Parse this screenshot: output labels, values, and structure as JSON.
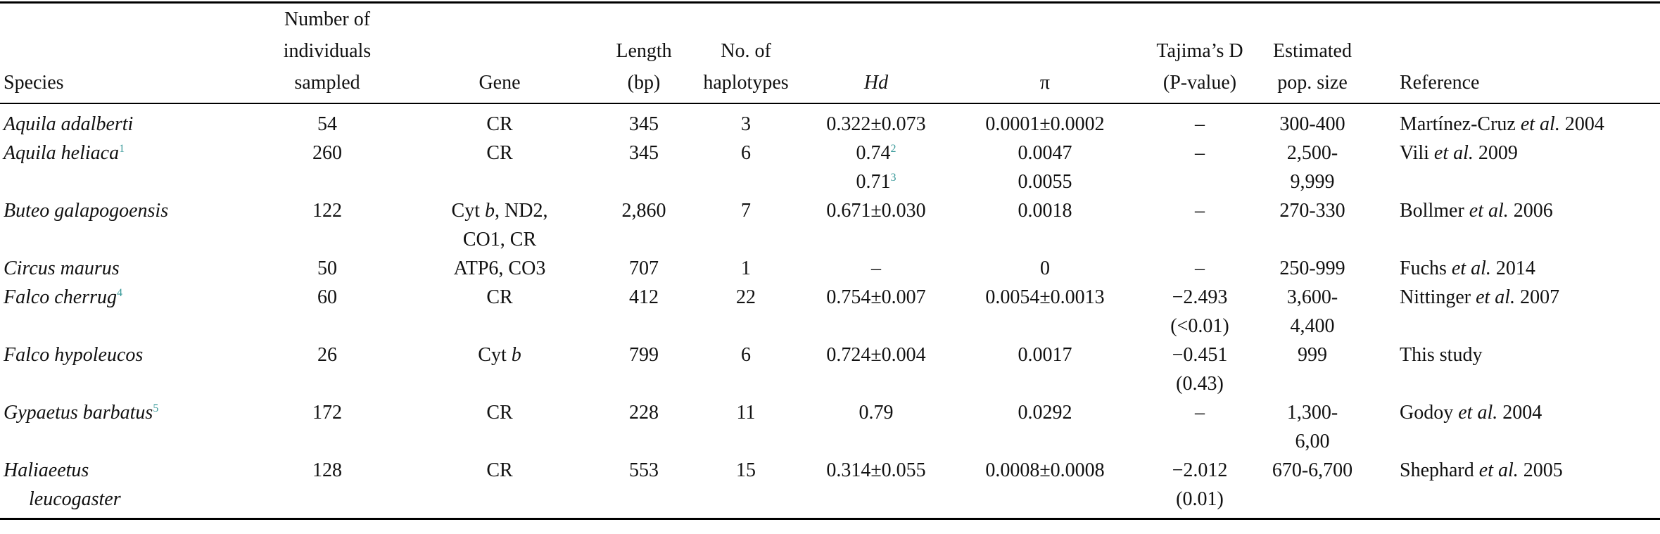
{
  "table": {
    "header": [
      "Species",
      {
        "lines": [
          "Number of",
          "individuals",
          "sampled"
        ]
      },
      "Gene",
      {
        "lines": [
          "Length",
          "(bp)"
        ]
      },
      {
        "lines": [
          "No. of",
          "haplotypes"
        ]
      },
      "Hd",
      "π",
      {
        "lines": [
          "Tajima’s D",
          "(P-value)"
        ]
      },
      {
        "lines": [
          "Estimated",
          "pop. size"
        ]
      },
      "Reference"
    ],
    "rows": [
      [
        "Aquila adalberti",
        "54",
        "CR",
        "345",
        "3",
        "0.322±0.073",
        "0.0001±0.0002",
        "–",
        "300-400",
        [
          "Martínez-Cruz ",
          {
            "i": "et al."
          },
          " 2004"
        ]
      ],
      [
        [
          "Aquila heliaca",
          {
            "sup": "1"
          }
        ],
        "260",
        "CR",
        "345",
        "6",
        {
          "lines": [
            [
              "0.74",
              {
                "sup": "2"
              }
            ],
            [
              "0.71",
              {
                "sup": "3"
              }
            ]
          ]
        },
        {
          "lines": [
            "0.0047",
            "0.0055"
          ]
        },
        "–",
        {
          "lines": [
            "2,500-",
            "9,999"
          ]
        },
        [
          "Vili ",
          {
            "i": "et al."
          },
          " 2009"
        ]
      ],
      [
        "Buteo galapogoensis",
        "122",
        {
          "lines": [
            [
              "Cyt ",
              {
                "i": "b"
              },
              ", ND2,"
            ],
            "CO1, CR"
          ]
        },
        "2,860",
        "7",
        "0.671±0.030",
        "0.0018",
        "–",
        "270-330",
        [
          "Bollmer ",
          {
            "i": "et al."
          },
          " 2006"
        ]
      ],
      [
        "Circus maurus",
        "50",
        "ATP6, CO3",
        "707",
        "1",
        "–",
        "0",
        "–",
        "250-999",
        [
          "Fuchs ",
          {
            "i": "et al."
          },
          " 2014"
        ]
      ],
      [
        [
          "Falco cherrug",
          {
            "sup": "4"
          }
        ],
        "60",
        "CR",
        "412",
        "22",
        "0.754±0.007",
        "0.0054±0.0013",
        {
          "lines": [
            "−2.493",
            "(<0.01)"
          ]
        },
        {
          "lines": [
            "3,600-",
            "4,400"
          ]
        },
        [
          "Nittinger ",
          {
            "i": "et al."
          },
          " 2007"
        ]
      ],
      [
        "Falco hypoleucos",
        "26",
        [
          "Cyt ",
          {
            "i": "b"
          }
        ],
        "799",
        "6",
        "0.724±0.004",
        "0.0017",
        {
          "lines": [
            "−0.451",
            "(0.43)"
          ]
        },
        "999",
        "This study"
      ],
      [
        [
          "Gypaetus barbatus",
          {
            "sup": "5"
          }
        ],
        "172",
        "CR",
        "228",
        "11",
        "0.79",
        "0.0292",
        "–",
        {
          "lines": [
            "1,300-",
            "6,00"
          ]
        },
        [
          "Godoy ",
          {
            "i": "et al."
          },
          " 2004"
        ]
      ],
      [
        {
          "lines": [
            "Haliaeetus",
            "leucogaster"
          ]
        },
        "128",
        "CR",
        "553",
        "15",
        "0.314±0.055",
        "0.0008±0.0008",
        {
          "lines": [
            "−2.012",
            "(0.01)"
          ]
        },
        "670-6,700",
        [
          "Shephard ",
          {
            "i": "et al."
          },
          " 2005"
        ]
      ]
    ]
  }
}
